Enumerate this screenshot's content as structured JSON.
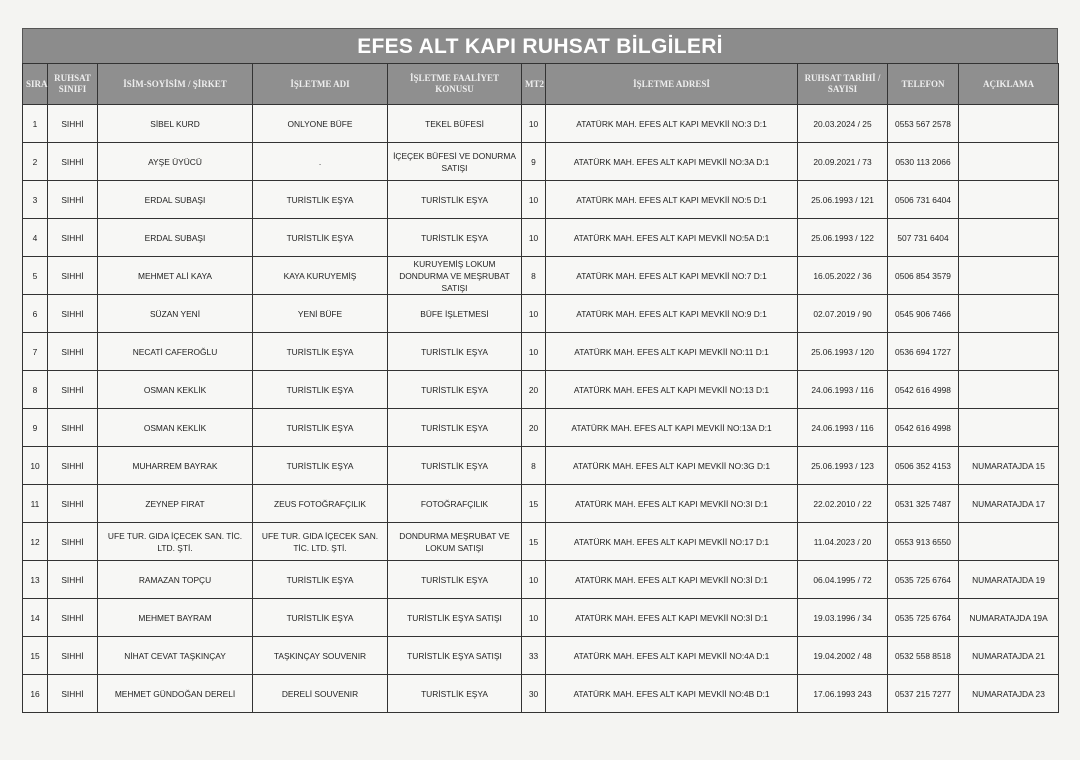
{
  "title": "EFES ALT KAPI RUHSAT BİLGİLERİ",
  "columns": [
    "SIRA",
    "RUHSAT SINIFI",
    "İSİM-SOYİSİM / ŞİRKET",
    "İŞLETME ADI",
    "İŞLETME FAALİYET KONUSU",
    "MT2",
    "İŞLETME ADRESİ",
    "RUHSAT TARİHİ / SAYISI",
    "TELEFON",
    "AÇIKLAMA"
  ],
  "rows": [
    [
      "1",
      "SIHHİ",
      "SİBEL KURD",
      "ONLYONE BÜFE",
      "TEKEL BÜFESİ",
      "10",
      "ATATÜRK MAH. EFES ALT KAPI MEVKİİ NO:3 D:1",
      "20.03.2024 / 25",
      "0553 567 2578",
      ""
    ],
    [
      "2",
      "SIHHİ",
      "AYŞE ÜYÜCÜ",
      ".",
      "İÇEÇEK BÜFESİ VE DONURMA SATIŞI",
      "9",
      "ATATÜRK MAH. EFES ALT KAPI MEVKİİ NO:3A D:1",
      "20.09.2021 / 73",
      "0530 113 2066",
      ""
    ],
    [
      "3",
      "SIHHİ",
      "ERDAL SUBAŞI",
      "TURİSTLİK EŞYA",
      "TURİSTLİK EŞYA",
      "10",
      "ATATÜRK MAH. EFES ALT KAPI MEVKİİ NO:5 D:1",
      "25.06.1993 / 121",
      "0506 731 6404",
      ""
    ],
    [
      "4",
      "SIHHİ",
      "ERDAL SUBAŞI",
      "TURİSTLİK EŞYA",
      "TURİSTLİK EŞYA",
      "10",
      "ATATÜRK MAH. EFES ALT KAPI MEVKİİ NO:5A D:1",
      "25.06.1993 / 122",
      "507 731 6404",
      ""
    ],
    [
      "5",
      "SIHHİ",
      "MEHMET ALİ KAYA",
      "KAYA KURUYEMİŞ",
      "KURUYEMİŞ LOKUM DONDURMA VE MEŞRUBAT SATIŞI",
      "8",
      "ATATÜRK MAH. EFES ALT KAPI MEVKİİ NO:7 D:1",
      "16.05.2022 / 36",
      "0506 854 3579",
      ""
    ],
    [
      "6",
      "SIHHİ",
      "SÜZAN YENİ",
      "YENİ BÜFE",
      "BÜFE İŞLETMESİ",
      "10",
      "ATATÜRK MAH. EFES ALT KAPI MEVKİİ NO:9 D:1",
      "02.07.2019 / 90",
      "0545 906 7466",
      ""
    ],
    [
      "7",
      "SIHHİ",
      "NECATİ CAFEROĞLU",
      "TURİSTLİK EŞYA",
      "TURİSTLİK EŞYA",
      "10",
      "ATATÜRK MAH. EFES ALT KAPI MEVKİİ NO:11 D:1",
      "25.06.1993 / 120",
      "0536 694 1727",
      ""
    ],
    [
      "8",
      "SIHHİ",
      "OSMAN KEKLİK",
      "TURİSTLİK EŞYA",
      "TURİSTLİK EŞYA",
      "20",
      "ATATÜRK MAH. EFES ALT KAPI MEVKİİ NO:13 D:1",
      "24.06.1993 / 116",
      "0542 616 4998",
      ""
    ],
    [
      "9",
      "SIHHİ",
      "OSMAN KEKLİK",
      "TURİSTLİK EŞYA",
      "TURİSTLİK EŞYA",
      "20",
      "ATATÜRK MAH. EFES ALT KAPI MEVKİİ NO:13A D:1",
      "24.06.1993 / 116",
      "0542 616 4998",
      ""
    ],
    [
      "10",
      "SIHHİ",
      "MUHARREM BAYRAK",
      "TURİSTLİK EŞYA",
      "TURİSTLİK EŞYA",
      "8",
      "ATATÜRK MAH. EFES ALT KAPI MEVKİİ NO:3G D:1",
      "25.06.1993 / 123",
      "0506 352 4153",
      "NUMARATAJDA 15"
    ],
    [
      "11",
      "SIHHİ",
      "ZEYNEP FIRAT",
      "ZEUS FOTOĞRAFÇILIK",
      "FOTOĞRAFÇILIK",
      "15",
      "ATATÜRK MAH. EFES ALT KAPI MEVKİİ NO:3I D:1",
      "22.02.2010 / 22",
      "0531 325 7487",
      "NUMARATAJDA 17"
    ],
    [
      "12",
      "SIHHİ",
      "UFE TUR. GIDA  İÇECEK SAN. TİC. LTD. ŞTİ.",
      "UFE TUR. GIDA  İÇECEK SAN. TİC. LTD. ŞTİ.",
      "DONDURMA MEŞRUBAT VE LOKUM SATIŞI",
      "15",
      "ATATÜRK MAH. EFES ALT KAPI MEVKİİ NO:17 D:1",
      "11.04.2023 / 20",
      "0553 913 6550",
      ""
    ],
    [
      "13",
      "SIHHİ",
      "RAMAZAN TOPÇU",
      "TURİSTLİK EŞYA",
      "TURİSTLİK EŞYA",
      "10",
      "ATATÜRK MAH. EFES ALT KAPI MEVKİİ NO:3İ D:1",
      "06.04.1995 / 72",
      "0535 725 6764",
      "NUMARATAJDA 19"
    ],
    [
      "14",
      "SIHHİ",
      "MEHMET BAYRAM",
      "TURİSTLİK EŞYA",
      "TURİSTLİK EŞYA SATIŞI",
      "10",
      "ATATÜRK MAH. EFES ALT KAPI MEVKİİ NO:3İ D:1",
      "19.03.1996 / 34",
      "0535 725 6764",
      "NUMARATAJDA 19A"
    ],
    [
      "15",
      "SIHHİ",
      "NİHAT CEVAT TAŞKINÇAY",
      "TAŞKINÇAY SOUVENIR",
      "TURİSTLİK EŞYA SATIŞI",
      "33",
      "ATATÜRK MAH. EFES ALT KAPI MEVKİİ NO:4A D:1",
      "19.04.2002 / 48",
      "0532 558 8518",
      "NUMARATAJDA 21"
    ],
    [
      "16",
      "SIHHİ",
      "MEHMET GÜNDOĞAN DERELİ",
      "DERELİ SOUVENIR",
      "TURİSTLİK EŞYA",
      "30",
      "ATATÜRK MAH. EFES ALT KAPI MEVKİİ NO:4B D:1",
      "17.06.1993  243",
      "0537 215 7277",
      "NUMARATAJDA 23"
    ]
  ]
}
